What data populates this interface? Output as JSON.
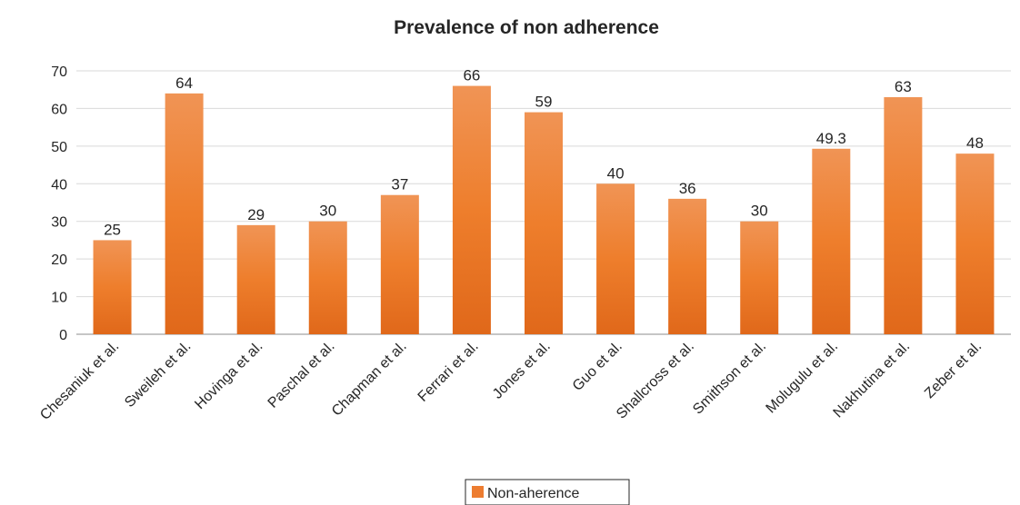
{
  "chart_data": {
    "type": "bar",
    "title": "Prevalence of non adherence",
    "xlabel": "",
    "ylabel": "",
    "ylim": [
      0,
      70
    ],
    "yticks": [
      0,
      10,
      20,
      30,
      40,
      50,
      60,
      70
    ],
    "grid": true,
    "legend_position": "bottom",
    "categories": [
      "Chesaniuk et al.",
      "Sweileh et al.",
      "Hovinga et al.",
      "Paschal et al.",
      "Chapman et al.",
      "Ferrari et al.",
      "Jones et al.",
      "Guo et al.",
      "Shallcross et al.",
      "Smithson et al.",
      "Molugulu et al.",
      "Nakhutina et al.",
      "Zeber et al."
    ],
    "series": [
      {
        "name": "Non-aherence",
        "color": "#ED7D31",
        "values": [
          25,
          64,
          29,
          30,
          37,
          66,
          59,
          40,
          36,
          30,
          49.3,
          63,
          48
        ],
        "data_labels": [
          "25",
          "64",
          "29",
          "30",
          "37",
          "66",
          "59",
          "40",
          "36",
          "30",
          "49.3",
          "63",
          "48"
        ]
      }
    ]
  }
}
